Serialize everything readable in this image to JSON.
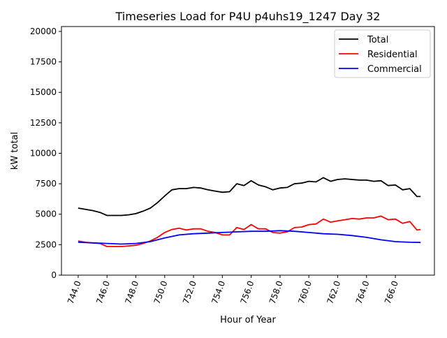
{
  "chart_data": {
    "type": "line",
    "title": "Timeseries Load for P4U p4uhs19_1247  Day 32",
    "xlabel": "Hour of Year",
    "ylabel": "kW total",
    "xlim": [
      742.84,
      768.71
    ],
    "ylim": [
      0,
      20400
    ],
    "xticks": [
      744,
      746,
      748,
      750,
      752,
      754,
      756,
      758,
      760,
      762,
      764,
      766
    ],
    "xtick_labels": [
      "744.0",
      "746.0",
      "748.0",
      "750.0",
      "752.0",
      "754.0",
      "756.0",
      "758.0",
      "760.0",
      "762.0",
      "764.0",
      "766.0"
    ],
    "yticks": [
      0,
      2500,
      5000,
      7500,
      10000,
      12500,
      15000,
      17500,
      20000
    ],
    "ytick_labels": [
      "0",
      "2500",
      "5000",
      "7500",
      "10000",
      "12500",
      "15000",
      "17500",
      "20000"
    ],
    "grid": false,
    "legend_position": "top-right",
    "series": [
      {
        "name": "Total",
        "color": "#000000",
        "x": [
          744,
          744.5,
          745,
          745.5,
          746,
          746.5,
          747,
          747.5,
          748,
          748.5,
          749,
          749.5,
          750,
          750.5,
          751,
          751.5,
          752,
          752.5,
          753,
          753.5,
          754,
          754.5,
          755,
          755.5,
          756,
          756.5,
          757,
          757.5,
          758,
          758.5,
          759,
          759.5,
          760,
          760.5,
          761,
          761.5,
          762,
          762.5,
          763,
          763.5,
          764,
          764.5,
          765,
          765.5,
          766,
          766.5,
          767,
          767.5,
          767.75
        ],
        "values": [
          5500,
          5400,
          5300,
          5150,
          4900,
          4900,
          4900,
          4950,
          5050,
          5250,
          5500,
          5950,
          6500,
          7000,
          7100,
          7100,
          7200,
          7150,
          7000,
          6900,
          6800,
          6850,
          7500,
          7350,
          7750,
          7400,
          7250,
          7000,
          7150,
          7200,
          7500,
          7550,
          7700,
          7650,
          8000,
          7700,
          7850,
          7900,
          7850,
          7800,
          7800,
          7700,
          7750,
          7350,
          7400,
          7000,
          7100,
          6450,
          6450
        ]
      },
      {
        "name": "Residential",
        "color": "#ff0000",
        "x": [
          744,
          744.5,
          745,
          745.5,
          746,
          746.5,
          747,
          747.5,
          748,
          748.5,
          749,
          749.5,
          750,
          750.5,
          751,
          751.5,
          752,
          752.5,
          753,
          753.5,
          754,
          754.5,
          755,
          755.5,
          756,
          756.5,
          757,
          757.5,
          758,
          758.5,
          759,
          759.5,
          760,
          760.5,
          761,
          761.5,
          762,
          762.5,
          763,
          763.5,
          764,
          764.5,
          765,
          765.5,
          766,
          766.5,
          767,
          767.5,
          767.75
        ],
        "values": [
          2800,
          2700,
          2650,
          2600,
          2350,
          2350,
          2350,
          2400,
          2450,
          2600,
          2800,
          3100,
          3500,
          3750,
          3850,
          3700,
          3800,
          3800,
          3600,
          3500,
          3300,
          3300,
          3900,
          3750,
          4150,
          3800,
          3800,
          3500,
          3450,
          3550,
          3900,
          3950,
          4150,
          4200,
          4600,
          4350,
          4450,
          4550,
          4650,
          4600,
          4700,
          4700,
          4850,
          4550,
          4600,
          4250,
          4400,
          3700,
          3750
        ]
      },
      {
        "name": "Commercial",
        "color": "#0000ff",
        "x": [
          744,
          745,
          746,
          747,
          748,
          749,
          750,
          751,
          752,
          753,
          754,
          755,
          756,
          757,
          758,
          759,
          760,
          761,
          762,
          763,
          764,
          765,
          766,
          767,
          767.75
        ],
        "values": [
          2700,
          2650,
          2600,
          2550,
          2600,
          2750,
          3050,
          3300,
          3400,
          3450,
          3500,
          3550,
          3600,
          3600,
          3650,
          3600,
          3500,
          3400,
          3350,
          3250,
          3100,
          2900,
          2750,
          2700,
          2680
        ]
      }
    ]
  }
}
